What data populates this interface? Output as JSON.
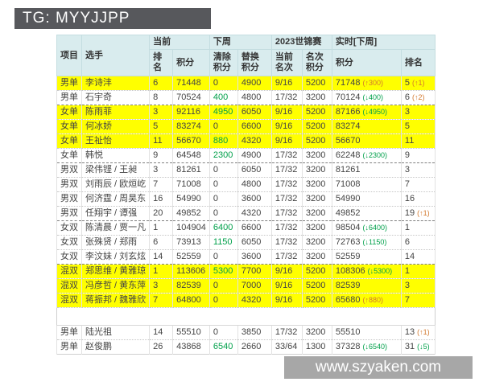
{
  "banner": {
    "text": "TG: MYYJJPP"
  },
  "watermark": {
    "text": "www.szyaken.com"
  },
  "colors": {
    "highlight": "#ffff00",
    "header_bg": "#d9ecee",
    "up_accent": "#d2782d",
    "down_accent": "#00a04a",
    "banner_bg": "#57585c",
    "watermark_bg": "#a7a7a7"
  },
  "table": {
    "columns": {
      "event": "项目",
      "player": "选手"
    },
    "groups": [
      {
        "label": "当前",
        "sub": [
          "排名",
          "积分"
        ]
      },
      {
        "label": "下周",
        "sub": [
          "清除\n积分",
          "替换\n积分"
        ]
      },
      {
        "label": "2023世锦赛",
        "sub": [
          "当前\n名次",
          "名次\n积分"
        ]
      },
      {
        "label": "实时[下周]",
        "sub": [
          "积分",
          "排名"
        ]
      }
    ],
    "rows": [
      {
        "event": "男单",
        "player": "李诗沣",
        "rank": "6",
        "points": "71448",
        "clear": "0",
        "replace": "4900",
        "wc_place": "9/16",
        "wc_points": "5200",
        "live_points": "71748",
        "live_delta": "(↑300)",
        "live_delta_dir": "up",
        "live_rank": "5",
        "live_rank_delta": "(↑1)",
        "live_rank_delta_dir": "up",
        "highlight": true,
        "section_end": false
      },
      {
        "event": "男单",
        "player": "石宇奇",
        "rank": "8",
        "points": "70524",
        "clear": "400",
        "replace": "4800",
        "wc_place": "17/32",
        "wc_points": "3200",
        "live_points": "70124",
        "live_delta": "(↓400)",
        "live_delta_dir": "down",
        "live_rank": "6",
        "live_rank_delta": "(↑2)",
        "live_rank_delta_dir": "up",
        "highlight": false,
        "section_end": true
      },
      {
        "event": "女单",
        "player": "陈雨菲",
        "rank": "3",
        "points": "92116",
        "clear": "4950",
        "replace": "6050",
        "wc_place": "9/16",
        "wc_points": "5200",
        "live_points": "87166",
        "live_delta": "(↓4950)",
        "live_delta_dir": "down",
        "live_rank": "3",
        "live_rank_delta": "",
        "live_rank_delta_dir": "",
        "highlight": true,
        "section_end": false
      },
      {
        "event": "女单",
        "player": "何冰娇",
        "rank": "5",
        "points": "83274",
        "clear": "0",
        "replace": "6600",
        "wc_place": "9/16",
        "wc_points": "5200",
        "live_points": "83274",
        "live_delta": "",
        "live_delta_dir": "",
        "live_rank": "5",
        "live_rank_delta": "",
        "live_rank_delta_dir": "",
        "highlight": true,
        "section_end": false
      },
      {
        "event": "女单",
        "player": "王祉怡",
        "rank": "11",
        "points": "56670",
        "clear": "880",
        "replace": "4320",
        "wc_place": "9/16",
        "wc_points": "5200",
        "live_points": "56670",
        "live_delta": "",
        "live_delta_dir": "",
        "live_rank": "11",
        "live_rank_delta": "",
        "live_rank_delta_dir": "",
        "highlight": true,
        "section_end": false
      },
      {
        "event": "女单",
        "player": "韩悦",
        "rank": "9",
        "points": "64548",
        "clear": "2300",
        "replace": "4900",
        "wc_place": "17/32",
        "wc_points": "3200",
        "live_points": "62248",
        "live_delta": "(↓2300)",
        "live_delta_dir": "down",
        "live_rank": "9",
        "live_rank_delta": "",
        "live_rank_delta_dir": "",
        "highlight": false,
        "section_end": true
      },
      {
        "event": "男双",
        "player": "梁伟铿 / 王昶",
        "rank": "3",
        "points": "81261",
        "clear": "0",
        "replace": "6050",
        "wc_place": "17/32",
        "wc_points": "3200",
        "live_points": "81261",
        "live_delta": "",
        "live_delta_dir": "",
        "live_rank": "3",
        "live_rank_delta": "",
        "live_rank_delta_dir": "",
        "highlight": false,
        "section_end": false
      },
      {
        "event": "男双",
        "player": "刘雨辰 / 欧烜屹",
        "rank": "7",
        "points": "71008",
        "clear": "0",
        "replace": "4800",
        "wc_place": "17/32",
        "wc_points": "3200",
        "live_points": "71008",
        "live_delta": "",
        "live_delta_dir": "",
        "live_rank": "7",
        "live_rank_delta": "",
        "live_rank_delta_dir": "",
        "highlight": false,
        "section_end": false
      },
      {
        "event": "男双",
        "player": "何济霆 / 周昊东",
        "rank": "16",
        "points": "54990",
        "clear": "0",
        "replace": "3600",
        "wc_place": "17/32",
        "wc_points": "3200",
        "live_points": "54990",
        "live_delta": "",
        "live_delta_dir": "",
        "live_rank": "16",
        "live_rank_delta": "",
        "live_rank_delta_dir": "",
        "highlight": false,
        "section_end": false
      },
      {
        "event": "男双",
        "player": "任翔宇 / 谭强",
        "rank": "20",
        "points": "49852",
        "clear": "0",
        "replace": "4320",
        "wc_place": "17/32",
        "wc_points": "3200",
        "live_points": "49852",
        "live_delta": "",
        "live_delta_dir": "",
        "live_rank": "19",
        "live_rank_delta": "(↑1)",
        "live_rank_delta_dir": "up",
        "highlight": false,
        "section_end": true
      },
      {
        "event": "女双",
        "player": "陈清晨 / 贾一凡",
        "rank": "1",
        "points": "104904",
        "clear": "6400",
        "replace": "6600",
        "wc_place": "17/32",
        "wc_points": "3200",
        "live_points": "98504",
        "live_delta": "(↓6400)",
        "live_delta_dir": "down",
        "live_rank": "1",
        "live_rank_delta": "",
        "live_rank_delta_dir": "",
        "highlight": false,
        "section_end": false
      },
      {
        "event": "女双",
        "player": "张殊贤 / 郑雨",
        "rank": "6",
        "points": "73913",
        "clear": "1150",
        "replace": "6050",
        "wc_place": "17/32",
        "wc_points": "3200",
        "live_points": "72763",
        "live_delta": "(↓1150)",
        "live_delta_dir": "down",
        "live_rank": "6",
        "live_rank_delta": "",
        "live_rank_delta_dir": "",
        "highlight": false,
        "section_end": false
      },
      {
        "event": "女双",
        "player": "李汶妹 / 刘玄炫",
        "rank": "14",
        "points": "52559",
        "clear": "0",
        "replace": "3600",
        "wc_place": "17/32",
        "wc_points": "3200",
        "live_points": "52559",
        "live_delta": "",
        "live_delta_dir": "",
        "live_rank": "14",
        "live_rank_delta": "",
        "live_rank_delta_dir": "",
        "highlight": false,
        "section_end": true
      },
      {
        "event": "混双",
        "player": "郑思维 / 黄雅琼",
        "rank": "1",
        "points": "113606",
        "clear": "5300",
        "replace": "7700",
        "wc_place": "9/16",
        "wc_points": "5200",
        "live_points": "108306",
        "live_delta": "(↓5300)",
        "live_delta_dir": "down",
        "live_rank": "1",
        "live_rank_delta": "",
        "live_rank_delta_dir": "",
        "highlight": true,
        "section_end": false
      },
      {
        "event": "混双",
        "player": "冯彦哲 / 黄东萍",
        "rank": "3",
        "points": "82539",
        "clear": "0",
        "replace": "7000",
        "wc_place": "9/16",
        "wc_points": "5200",
        "live_points": "82539",
        "live_delta": "",
        "live_delta_dir": "",
        "live_rank": "3",
        "live_rank_delta": "",
        "live_rank_delta_dir": "",
        "highlight": true,
        "section_end": false
      },
      {
        "event": "混双",
        "player": "蒋振邦 / 魏雅欣",
        "rank": "7",
        "points": "64800",
        "clear": "0",
        "replace": "4320",
        "wc_place": "9/16",
        "wc_points": "5200",
        "live_points": "65680",
        "live_delta": "(↑880)",
        "live_delta_dir": "up",
        "live_rank": "7",
        "live_rank_delta": "",
        "live_rank_delta_dir": "",
        "highlight": true,
        "section_end": false
      },
      {
        "spacer": true
      },
      {
        "event": "男单",
        "player": "陆光祖",
        "rank": "14",
        "points": "55510",
        "clear": "0",
        "replace": "3850",
        "wc_place": "17/32",
        "wc_points": "3200",
        "live_points": "55510",
        "live_delta": "",
        "live_delta_dir": "",
        "live_rank": "13",
        "live_rank_delta": "(↑1)",
        "live_rank_delta_dir": "up",
        "highlight": false,
        "section_end": false
      },
      {
        "event": "男单",
        "player": "赵俊鹏",
        "rank": "26",
        "points": "43868",
        "clear": "6540",
        "replace": "2660",
        "wc_place": "33/64",
        "wc_points": "1300",
        "live_points": "37328",
        "live_delta": "(↓6540)",
        "live_delta_dir": "down",
        "live_rank": "31",
        "live_rank_delta": "(↓5)",
        "live_rank_delta_dir": "down",
        "highlight": false,
        "section_end": false
      }
    ]
  }
}
